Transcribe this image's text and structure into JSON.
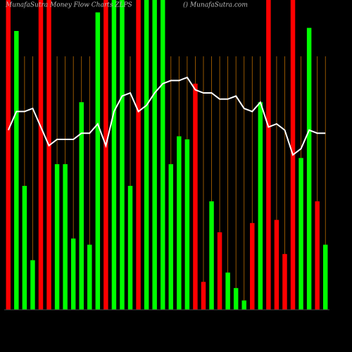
{
  "chart_data": {
    "type": "bar",
    "title": "MunafaSutra Money Flow Charts ZLPS",
    "credit": "() MunafaSutra.com",
    "ylim": [
      0,
      100
    ],
    "series": [
      {
        "name": "Money Flow",
        "type": "bar",
        "colors": [
          "#ff0000",
          "#00ff00",
          "#00ff00",
          "#00ff00",
          "#ff0000",
          "#ff0000",
          "#00ff00",
          "#00ff00",
          "#00ff00",
          "#00ff00",
          "#00ff00",
          "#00ff00",
          "#ff0000",
          "#00ff00",
          "#00ff00",
          "#00ff00",
          "#ff0000",
          "#00ff00",
          "#00ff00",
          "#00ff00",
          "#00ff00",
          "#00ff00",
          "#00ff00",
          "#ff0000",
          "#ff0000",
          "#00ff00",
          "#ff0000",
          "#00ff00",
          "#00ff00",
          "#00ff00",
          "#ff0000",
          "#00ff00",
          "#ff0000",
          "#ff0000",
          "#ff0000",
          "#ff0000",
          "#00ff00",
          "#00ff00",
          "#ff0000",
          "#00ff00"
        ],
        "values": [
          100,
          90,
          40,
          16,
          100,
          100,
          47,
          47,
          23,
          67,
          21,
          96,
          100,
          100,
          100,
          40,
          100,
          100,
          100,
          100,
          47,
          56,
          55,
          73,
          9,
          35,
          25,
          12,
          7,
          3,
          28,
          67,
          100,
          29,
          18,
          100,
          49,
          91,
          35,
          21
        ]
      },
      {
        "name": "Trend",
        "type": "line",
        "color": "#ffffff",
        "values": [
          58,
          64,
          64,
          65,
          59,
          53,
          55,
          55,
          55,
          57,
          57,
          60,
          53,
          64,
          69,
          70,
          64,
          66,
          70,
          73,
          74,
          74,
          75,
          71,
          70,
          70,
          68,
          68,
          69,
          65,
          64,
          67,
          59,
          60,
          58,
          50,
          52,
          58,
          57,
          57
        ]
      }
    ],
    "guide_color": "#b86a00"
  }
}
